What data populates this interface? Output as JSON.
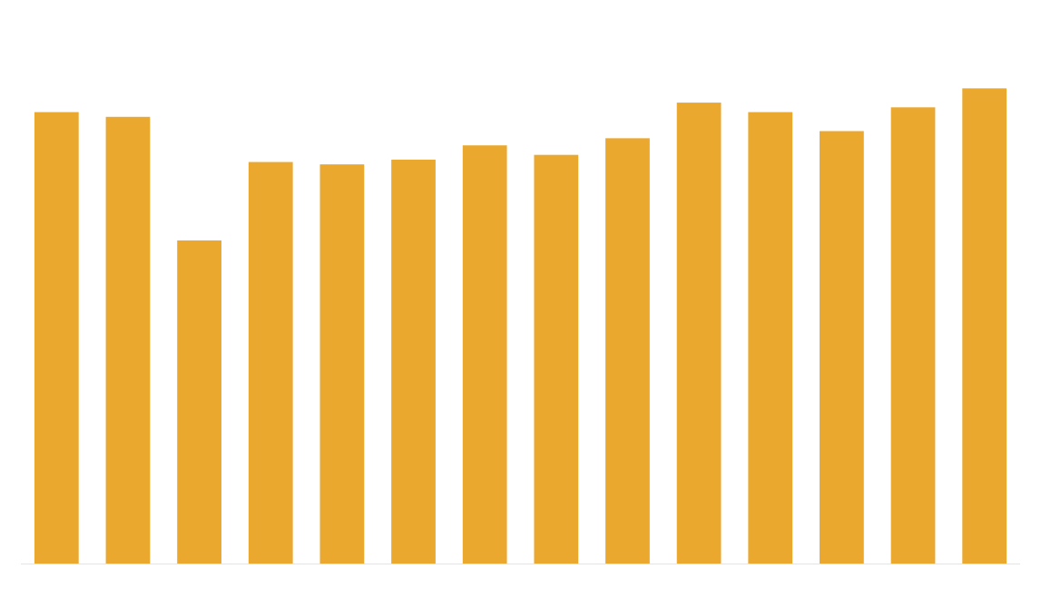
{
  "chart_data": {
    "type": "bar",
    "categories": [
      null,
      null,
      null,
      null,
      null,
      null,
      null,
      null,
      null,
      null,
      null,
      null,
      null,
      null
    ],
    "values": [
      95,
      94,
      68,
      84.5,
      84,
      85,
      88,
      86,
      89.5,
      97,
      95,
      91,
      96,
      100
    ],
    "color": "#eaa82e",
    "ylim": [
      0,
      110
    ]
  }
}
